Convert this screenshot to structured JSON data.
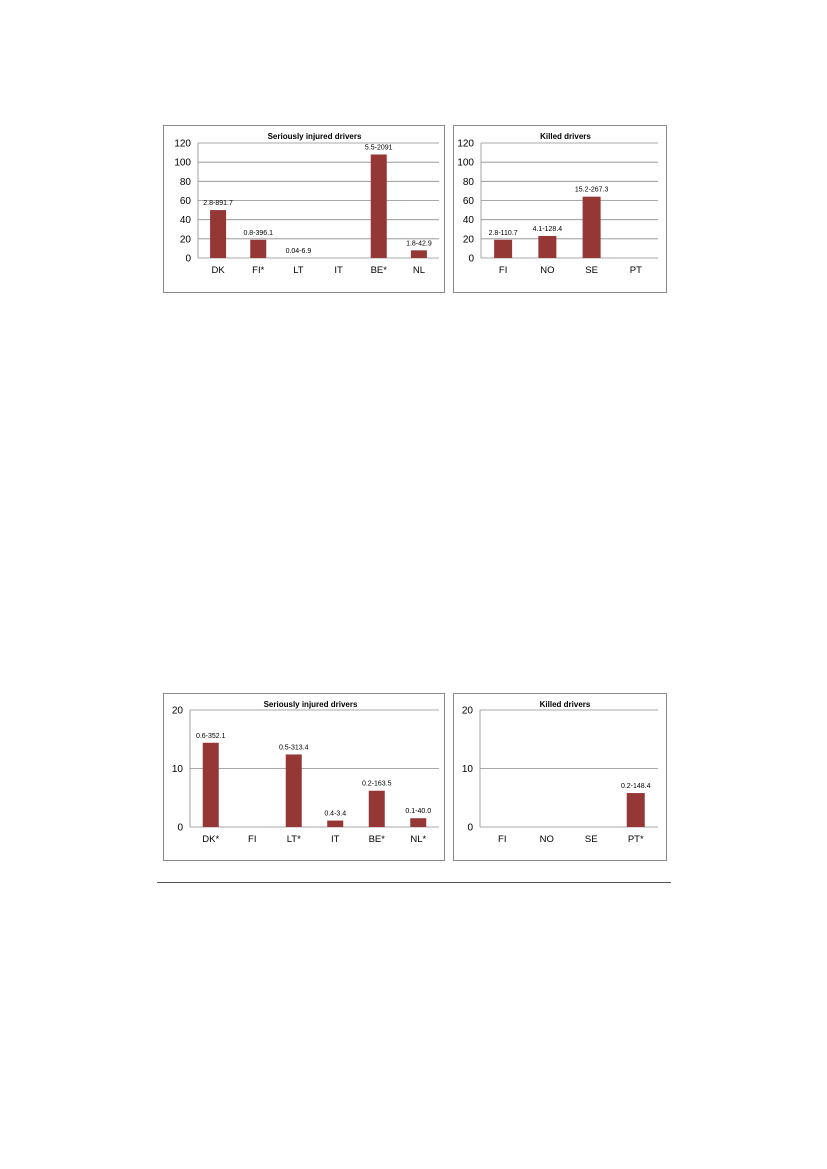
{
  "colors": {
    "bar": "#953735",
    "grid": "#8c8c8c",
    "axis": "#8c8c8c",
    "text": "#000000"
  },
  "chart_data": [
    {
      "type": "bar",
      "title": "Seriously injured drivers",
      "categories": [
        "DK",
        "FI*",
        "LT",
        "IT",
        "BE*",
        "NL"
      ],
      "values": [
        50,
        19,
        0,
        0,
        108,
        8
      ],
      "data_labels": [
        "2.8-891.7",
        "0.8-396.1",
        "0.04-6.9",
        "",
        "5.5-2091",
        "1.8-42.9"
      ],
      "ylim": [
        0,
        120
      ],
      "yticks": [
        0,
        20,
        40,
        60,
        80,
        100,
        120
      ],
      "grid": true,
      "legend": "none"
    },
    {
      "type": "bar",
      "title": "Killed drivers",
      "categories": [
        "FI",
        "NO",
        "SE",
        "PT"
      ],
      "values": [
        19,
        23,
        64,
        0
      ],
      "data_labels": [
        "2.8-110.7",
        "4.1-128.4",
        "15.2-267.3",
        ""
      ],
      "ylim": [
        0,
        120
      ],
      "yticks": [
        0,
        20,
        40,
        60,
        80,
        100,
        120
      ],
      "grid": true,
      "legend": "none"
    },
    {
      "type": "bar",
      "title": "Seriously injured drivers",
      "categories": [
        "DK*",
        "FI",
        "LT*",
        "IT",
        "BE*",
        "NL*"
      ],
      "values": [
        14.4,
        0,
        12.4,
        1.1,
        6.2,
        1.5
      ],
      "data_labels": [
        "0.6-352.1",
        "",
        "0.5-313.4",
        "0.4-3.4",
        "0.2-163.5",
        "0.1-40.0"
      ],
      "ylim": [
        0,
        20
      ],
      "yticks": [
        0,
        10,
        20
      ],
      "grid": true,
      "legend": "none"
    },
    {
      "type": "bar",
      "title": "Killed drivers",
      "categories": [
        "FI",
        "NO",
        "SE",
        "PT*"
      ],
      "values": [
        0,
        0,
        0,
        5.8
      ],
      "data_labels": [
        "",
        "",
        "",
        "0.2-148.4"
      ],
      "ylim": [
        0,
        20
      ],
      "yticks": [
        0,
        10,
        20
      ],
      "grid": true,
      "legend": "none"
    }
  ]
}
